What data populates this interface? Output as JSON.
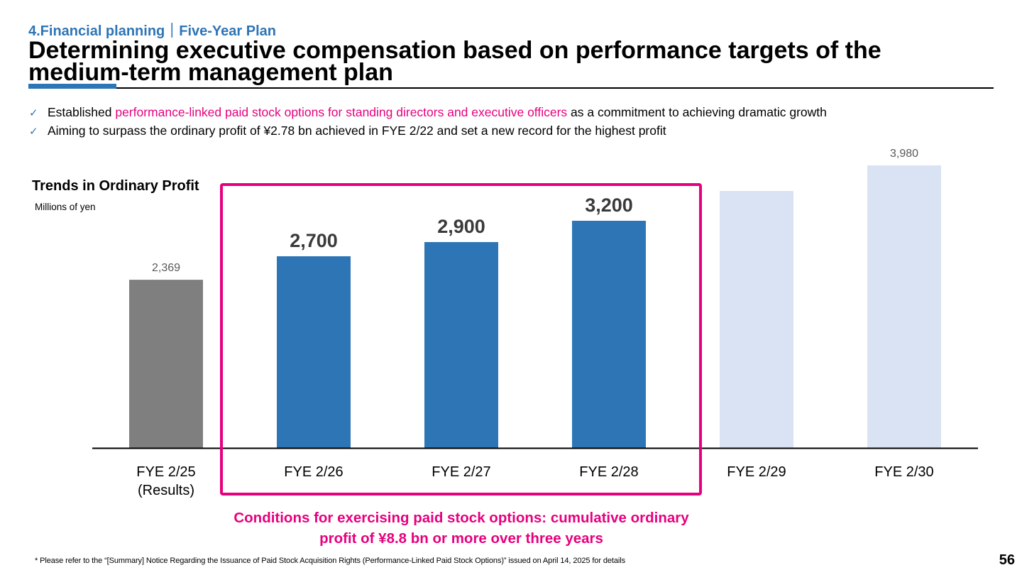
{
  "header": {
    "breadcrumb": "4.Financial planning｜Five-Year Plan",
    "title": "Determining executive compensation based on performance targets of the medium-term management plan"
  },
  "bullets": [
    {
      "check": "✓",
      "text_before": "Established ",
      "highlight": "performance-linked paid stock options for standing directors and executive officers",
      "text_after": " as a commitment to achieving dramatic growth"
    },
    {
      "check": "✓",
      "text_before": "Aiming to surpass the ordinary profit of ¥2.78 bn achieved in FYE 2/22 and set a new record for the highest profit",
      "highlight": "",
      "text_after": ""
    }
  ],
  "chart_data": {
    "type": "bar",
    "title": "Trends in Ordinary Profit",
    "unit_label": "Millions of yen",
    "categories": [
      [
        "FYE 2/25",
        "(Results)"
      ],
      [
        "FYE 2/26"
      ],
      [
        "FYE 2/27"
      ],
      [
        "FYE 2/28"
      ],
      [
        "FYE 2/29"
      ],
      [
        "FYE 2/30"
      ]
    ],
    "values": [
      2369,
      2700,
      2900,
      3200,
      3620,
      3980
    ],
    "data_labels": [
      "2,369",
      "2,700",
      "2,900",
      "3,200",
      "",
      "3,980"
    ],
    "label_emphasis": [
      "normal",
      "bold",
      "bold",
      "bold",
      "normal",
      "normal"
    ],
    "bar_colors": [
      "#7F7F7F",
      "#2E75B6",
      "#2E75B6",
      "#2E75B6",
      "#DAE3F3",
      "#DAE3F3"
    ],
    "ylim": [
      0,
      4000
    ],
    "highlight_range": [
      1,
      3
    ],
    "highlight_color": "#E6007E",
    "grid": false
  },
  "callout": {
    "line1": "Conditions for exercising paid stock options: cumulative ordinary",
    "line2": "profit of ¥8.8 bn or more over three years"
  },
  "footnote": "* Please refer to the “[Summary] Notice Regarding the Issuance of Paid Stock Acquisition Rights (Performance-Linked Paid Stock Options)” issued on April 14, 2025 for details",
  "page_number": "56",
  "colors": {
    "accent": "#2E75B6",
    "highlight": "#E6007E"
  }
}
